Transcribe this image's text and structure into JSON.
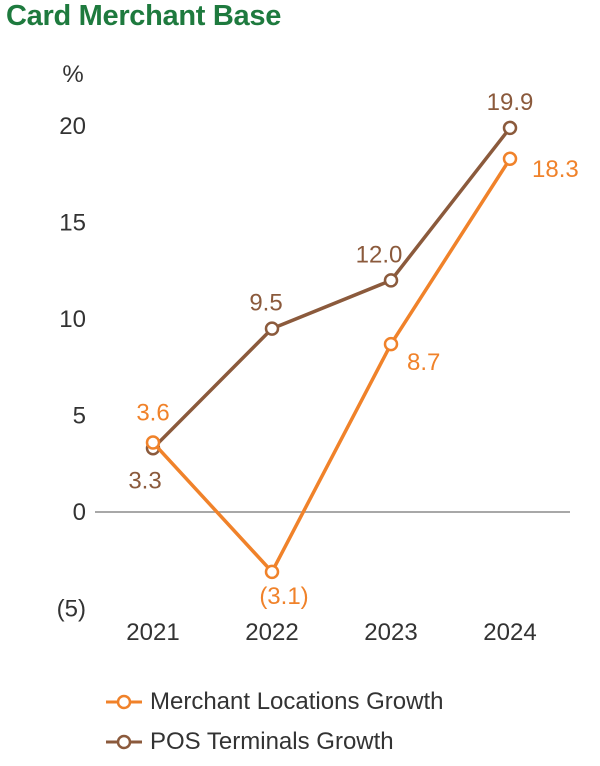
{
  "chart_data": {
    "type": "line",
    "title": "Card Merchant Base",
    "ylabel": "%",
    "categories": [
      "2021",
      "2022",
      "2023",
      "2024"
    ],
    "ylim": [
      -5,
      20
    ],
    "yticks": [
      -5,
      0,
      5,
      10,
      15,
      20
    ],
    "ytick_labels": [
      "(5)",
      "0",
      "5",
      "10",
      "15",
      "20"
    ],
    "grid": false,
    "legend_position": "bottom",
    "series": [
      {
        "name": "Merchant Locations Growth",
        "color": "#f0822a",
        "values": [
          3.6,
          -3.1,
          8.7,
          18.3
        ],
        "labels": [
          "3.6",
          "(3.1)",
          "8.7",
          "18.3"
        ]
      },
      {
        "name": "POS Terminals Growth",
        "color": "#8b5a3c",
        "values": [
          3.3,
          9.5,
          12.0,
          19.9
        ],
        "labels": [
          "3.3",
          "9.5",
          "12.0",
          "19.9"
        ]
      }
    ]
  }
}
